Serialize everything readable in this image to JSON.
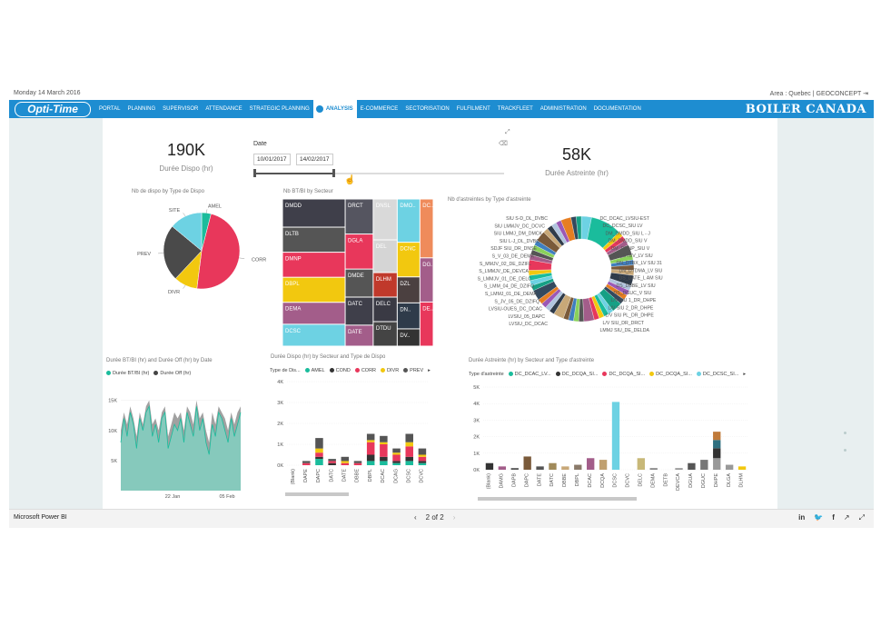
{
  "topbar": {
    "date": "Monday 14 March 2016",
    "right": "Area : Quebec  |  GEOCONCEPT"
  },
  "nav": {
    "logo": "Opti-Time",
    "brand": "BOILER CANADA",
    "items": [
      "PORTAL",
      "PLANNING",
      "SUPERVISOR",
      "ATTENDANCE",
      "STRATEGIC PLANNING",
      "ANALYSIS",
      "E-COMMERCE",
      "SECTORISATION",
      "FULFILMENT",
      "TRACKFLEET",
      "ADMINISTRATION",
      "DOCUMENTATION"
    ],
    "active": "ANALYSIS"
  },
  "kpi1": {
    "value": "190K",
    "label": "Durée Dispo (hr)"
  },
  "kpi2": {
    "value": "58K",
    "label": "Durée Astreinte (hr)"
  },
  "slicer": {
    "label": "Date",
    "from": "10/01/2017",
    "to": "14/02/2017"
  },
  "pie": {
    "title": "Nb de dispo by Type de Dispo",
    "labels": [
      "AMEL",
      "CORR",
      "DIVR",
      "PREV",
      "SITE"
    ],
    "values": [
      4,
      48,
      10,
      24,
      14
    ],
    "colors": [
      "#1abc9c",
      "#e8375b",
      "#f2c80f",
      "#4a4a4a",
      "#6dd2e3"
    ]
  },
  "treemap": {
    "title": "Nb BT/BI by Secteur",
    "labels": [
      "DMDD",
      "DLTB",
      "DMNP",
      "DBPL",
      "DEMA",
      "DCSC",
      "DRCT",
      "DNSL",
      "DMO..",
      "DC..",
      "DEL",
      "DCNC",
      "DZL",
      "DG..",
      "DE..",
      "DGLA",
      "DMDE",
      "DLHM",
      "DN..",
      "DATC",
      "DELC",
      "DTDU",
      "DATE",
      "DV.."
    ],
    "values": [
      9,
      8,
      8,
      8,
      7,
      7,
      5,
      5,
      5,
      4,
      4,
      4,
      3,
      3,
      3,
      5,
      4,
      3,
      3,
      4,
      3,
      3,
      3,
      2
    ],
    "colors": [
      "#3f3f4a",
      "#555",
      "#e8375b",
      "#f2c80f",
      "#a35d8a",
      "#6dd2e3",
      "#555560",
      "#d9d9d9",
      "#6dd2e3",
      "#ef8b5b",
      "#d5d5d5",
      "#f2c80f",
      "#4b4040",
      "#a35d8a",
      "#e8375b",
      "#e8375b",
      "#555",
      "#c0392b",
      "#2f3b4a",
      "#3f3f4a",
      "#3a3a44",
      "#444",
      "#a35d8a",
      "#333"
    ]
  },
  "donut": {
    "title": "Nb d'astreintes by Type d'astreinte",
    "labels_left": [
      "SIU S-D_DL_DVBC",
      "SIU LMMJV_DC_DCVC",
      "SIU LMMJ_DM_DMCK",
      "SIU L-J_DL_DVBC",
      "SDJF SIU_DR_DNSE",
      "S_V_03_DE_DEMA",
      "S_MMJV_02_DE_DZIFL",
      "S_LMMJV_DE_DEVCA",
      "S_LMMJV_01_DE_DELC",
      "S_LMM_04_DE_DZIFQ",
      "S_LMMJ_01_DE_DEMA",
      "S_JV_05_DE_DZIFQ",
      "LVSIU-OUES_DC_DCAC",
      "LVSIU_05_DAPC",
      "LVSIU_DC_DCAC"
    ],
    "labels_right": [
      "DC_DCAC_LVSIU-EST",
      "DC_DCSC_SIU LV",
      "DM_DMDD_SIU L - J",
      "DM_DMDD_SIU V",
      "DM_DMNP_SIU V",
      "DN_DTBV_LV SIU",
      "DN_DTBX_LV SIU 31",
      "DN_DTDMA_LV SIU",
      "DS_DATE_L AM SIU",
      "DS_DBBE_LV SIU",
      "DS_DGUC_V SIU",
      "L/V SIU 1_DR_DHPE",
      "L/V SIU 2_DR_DHPE",
      "L/V SIU PL_DR_DHPE",
      "L/V SIU_DR_DRCT",
      "LMMJ SIU_DE_DELDA"
    ]
  },
  "area": {
    "title": "Durée BT/BI (hr) and Durée Off (hr) by Date",
    "legend": [
      "Durée BT/BI (hr)",
      "Durée Off (hr)"
    ],
    "yticks": [
      "15K",
      "10K",
      "5K"
    ],
    "xticks": [
      "22 Jan",
      "05 Feb"
    ],
    "series1": [
      8,
      12,
      9,
      13,
      11,
      7,
      12,
      10,
      13,
      14,
      9,
      11,
      8,
      12,
      13,
      7,
      9,
      11,
      10,
      12,
      8,
      13,
      11,
      9,
      14,
      10,
      12,
      8,
      6,
      11,
      9,
      13,
      12,
      10,
      8,
      12,
      9,
      11,
      13
    ],
    "series2": [
      10,
      13,
      11,
      14,
      12,
      9,
      13,
      11,
      14,
      15,
      11,
      12,
      10,
      13,
      14,
      9,
      11,
      13,
      12,
      13,
      10,
      14,
      13,
      11,
      15,
      12,
      13,
      10,
      8,
      13,
      11,
      14,
      13,
      12,
      10,
      13,
      11,
      13,
      14
    ],
    "colors": [
      "#7fd3c3",
      "#444"
    ]
  },
  "bar1": {
    "title": "Durée Dispo (hr) by Secteur and Type de Dispo",
    "legend_label": "Type de Dis...",
    "legend": [
      "AMEL",
      "COND",
      "CORR",
      "DIVR",
      "PREV"
    ],
    "colors": [
      "#1abc9c",
      "#333",
      "#e8375b",
      "#f2c80f",
      "#555"
    ],
    "yticks": [
      "4K",
      "3K",
      "2K",
      "1K",
      "0K"
    ],
    "categories": [
      "(Blank)",
      "DAPE",
      "DAPC",
      "DATC",
      "DATE",
      "DBBE",
      "DBPL",
      "DCAC",
      "DCAG",
      "DCSC",
      "DCVC"
    ],
    "stacks": [
      [
        0,
        0,
        0,
        0,
        0
      ],
      [
        0,
        0,
        0.1,
        0,
        0.1
      ],
      [
        0.3,
        0.1,
        0.2,
        0.2,
        0.5
      ],
      [
        0,
        0.1,
        0.1,
        0,
        0.1
      ],
      [
        0,
        0,
        0.1,
        0.1,
        0.2
      ],
      [
        0,
        0,
        0.1,
        0,
        0.1
      ],
      [
        0.2,
        0.3,
        0.6,
        0.1,
        0.3
      ],
      [
        0.2,
        0.2,
        0.6,
        0.1,
        0.3
      ],
      [
        0.1,
        0.1,
        0.3,
        0.1,
        0.2
      ],
      [
        0.2,
        0.2,
        0.5,
        0.2,
        0.4
      ],
      [
        0.1,
        0.1,
        0.2,
        0.1,
        0.3
      ]
    ]
  },
  "bar2": {
    "title": "Durée Astreinte (hr) by Secteur and Type d'astreinte",
    "legend_label": "Type d'astreinte",
    "legend": [
      "DC_DCAC_LV...",
      "DC_DCQA_SI...",
      "DC_DCQA_SI...",
      "DC_DCQA_SI...",
      "DC_DCSC_SI..."
    ],
    "colors": [
      "#1abc9c",
      "#333",
      "#e8375b",
      "#f2c80f",
      "#6dd2e3"
    ],
    "yticks": [
      "5K",
      "4K",
      "3K",
      "2K",
      "1K",
      "0K"
    ],
    "categories": [
      "(Blank)",
      "DAMG",
      "DAPB",
      "DAPC",
      "DATE",
      "DATC",
      "DBBE",
      "DBPL",
      "DCAC",
      "DCQA",
      "DCSC",
      "DCVC",
      "DELC",
      "DEMA",
      "DETB",
      "DEVCA",
      "DGUA",
      "DGUC",
      "DHPE",
      "DLGA",
      "DLHM"
    ],
    "values": [
      0.4,
      0.2,
      0.1,
      0.8,
      0.2,
      0.4,
      0.2,
      0.3,
      0.7,
      0.6,
      4.1,
      0,
      0.7,
      0.1,
      0,
      0.1,
      0.4,
      0.6,
      2.3,
      0.3,
      0.2
    ],
    "colors_per_bar": [
      "#333",
      "#a35d8a",
      "#555",
      "#7a5a3a",
      "#555",
      "#a08a5a",
      "#c8a878",
      "#8a7a6a",
      "#a35d8a",
      "#c0a070",
      "#6dd2e3",
      "#ccc",
      "#c8b878",
      "#888",
      "#ccc",
      "#999",
      "#555",
      "#777",
      "#c07a3a",
      "#999",
      "#f2c80f"
    ]
  },
  "footer": {
    "brand": "Microsoft Power BI",
    "pager": "2 of 2"
  }
}
